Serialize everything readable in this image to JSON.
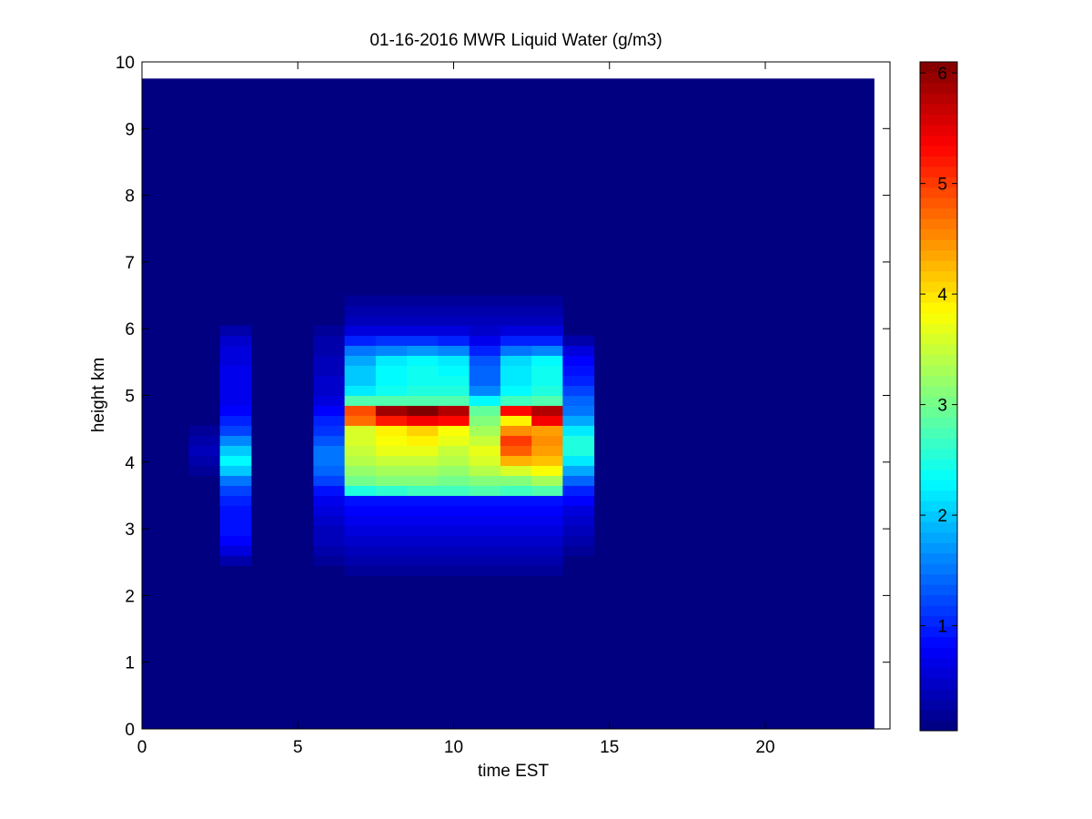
{
  "chart_data": {
    "type": "heatmap",
    "title": "01-16-2016 MWR Liquid Water (g/m3)",
    "xlabel": "time EST",
    "ylabel": "height km",
    "xlim": [
      0,
      24
    ],
    "ylim": [
      0,
      10
    ],
    "x_ticks": [
      0,
      5,
      10,
      15,
      20
    ],
    "y_ticks": [
      0,
      1,
      2,
      3,
      4,
      5,
      6,
      7,
      8,
      9,
      10
    ],
    "colorbar": {
      "colormap": "jet",
      "range": [
        0.05,
        6.1
      ],
      "ticks": [
        1,
        2,
        3,
        4,
        5,
        6
      ]
    },
    "grid": false,
    "background_value": 0.05,
    "data_extent": {
      "x_max": 23.5,
      "y_max": 9.75
    },
    "cell_height_km": 0.15,
    "columns": [
      {
        "x0": 1.5,
        "x1": 2.5,
        "y_start": 3.8,
        "values": [
          0.2,
          0.3,
          0.4,
          0.3,
          0.2
        ]
      },
      {
        "x0": 2.5,
        "x1": 3.5,
        "y_start": 2.45,
        "values": [
          0.3,
          0.6,
          0.8,
          0.9,
          0.9,
          0.9,
          1.0,
          1.2,
          1.5,
          2.0,
          2.3,
          2.0,
          1.6,
          1.2,
          1.0,
          0.8,
          0.7,
          0.7,
          0.7,
          0.7,
          0.6,
          0.6,
          0.5,
          0.3
        ]
      },
      {
        "x0": 5.5,
        "x1": 6.5,
        "y_start": 2.45,
        "values": [
          0.2,
          0.3,
          0.4,
          0.4,
          0.5,
          0.6,
          0.7,
          0.9,
          1.2,
          1.4,
          1.5,
          1.5,
          1.3,
          1.1,
          1.0,
          0.8,
          0.6,
          0.5,
          0.5,
          0.4,
          0.4,
          0.3,
          0.3,
          0.2
        ]
      },
      {
        "x0": 6.5,
        "x1": 7.5,
        "y_start": 2.3,
        "values": [
          0.2,
          0.3,
          0.4,
          0.5,
          0.6,
          0.7,
          0.8,
          0.9,
          2.5,
          3.0,
          3.2,
          3.4,
          3.5,
          3.6,
          3.6,
          4.7,
          4.9,
          2.8,
          2.2,
          2.0,
          2.0,
          1.8,
          1.5,
          1.0,
          0.6,
          0.4,
          0.3,
          0.2
        ]
      },
      {
        "x0": 7.5,
        "x1": 8.5,
        "y_start": 2.3,
        "values": [
          0.2,
          0.3,
          0.4,
          0.5,
          0.6,
          0.7,
          0.8,
          0.9,
          2.6,
          3.1,
          3.3,
          3.5,
          3.7,
          3.8,
          3.9,
          5.2,
          5.9,
          2.8,
          2.4,
          2.3,
          2.3,
          2.2,
          1.6,
          1.1,
          0.6,
          0.4,
          0.3,
          0.2
        ]
      },
      {
        "x0": 8.5,
        "x1": 9.5,
        "y_start": 2.3,
        "values": [
          0.2,
          0.3,
          0.4,
          0.5,
          0.6,
          0.7,
          0.8,
          0.9,
          2.7,
          3.1,
          3.3,
          3.5,
          3.7,
          3.9,
          4.1,
          5.4,
          6.1,
          2.8,
          2.5,
          2.4,
          2.4,
          2.3,
          1.7,
          1.1,
          0.6,
          0.4,
          0.3,
          0.2
        ]
      },
      {
        "x0": 9.5,
        "x1": 10.5,
        "y_start": 2.3,
        "values": [
          0.2,
          0.3,
          0.4,
          0.5,
          0.6,
          0.7,
          0.8,
          0.9,
          2.7,
          3.0,
          3.2,
          3.4,
          3.5,
          3.7,
          3.8,
          5.3,
          5.8,
          2.8,
          2.5,
          2.4,
          2.3,
          2.2,
          1.6,
          1.0,
          0.6,
          0.4,
          0.3,
          0.2
        ]
      },
      {
        "x0": 10.5,
        "x1": 11.5,
        "y_start": 2.3,
        "values": [
          0.2,
          0.3,
          0.4,
          0.5,
          0.6,
          0.7,
          0.8,
          0.9,
          2.8,
          3.1,
          3.4,
          3.6,
          3.7,
          3.5,
          3.3,
          3.1,
          2.9,
          2.3,
          1.6,
          1.4,
          1.4,
          1.3,
          1.0,
          0.7,
          0.5,
          0.4,
          0.3,
          0.2
        ]
      },
      {
        "x0": 11.5,
        "x1": 12.5,
        "y_start": 2.3,
        "values": [
          0.2,
          0.3,
          0.4,
          0.5,
          0.6,
          0.7,
          0.8,
          0.9,
          2.7,
          3.1,
          3.6,
          4.3,
          4.8,
          5.0,
          4.5,
          3.9,
          5.3,
          2.7,
          2.3,
          2.2,
          2.2,
          2.1,
          1.5,
          1.0,
          0.6,
          0.4,
          0.3,
          0.2
        ]
      },
      {
        "x0": 12.5,
        "x1": 13.5,
        "y_start": 2.3,
        "values": [
          0.2,
          0.3,
          0.4,
          0.5,
          0.6,
          0.7,
          0.8,
          0.9,
          2.8,
          3.3,
          3.8,
          4.2,
          4.4,
          4.5,
          4.4,
          5.4,
          5.8,
          2.8,
          2.5,
          2.4,
          2.4,
          2.3,
          1.6,
          1.0,
          0.6,
          0.4,
          0.3,
          0.2
        ]
      },
      {
        "x0": 13.5,
        "x1": 14.5,
        "y_start": 2.6,
        "values": [
          0.2,
          0.3,
          0.4,
          0.5,
          0.6,
          0.8,
          1.0,
          1.4,
          1.8,
          2.2,
          2.5,
          2.5,
          2.2,
          1.8,
          1.5,
          1.4,
          1.2,
          1.0,
          0.9,
          0.8,
          0.6,
          0.3
        ]
      }
    ]
  }
}
